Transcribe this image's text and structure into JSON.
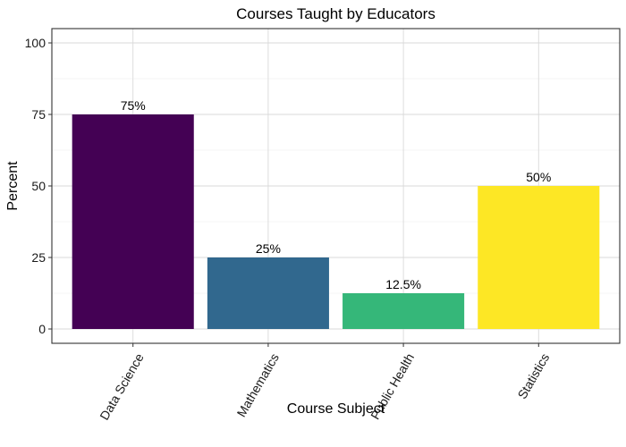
{
  "chart_data": {
    "type": "bar",
    "title": "Courses Taught by Educators",
    "xlabel": "Course Subject",
    "ylabel": "Percent",
    "categories": [
      "Data Science",
      "Mathematics",
      "Public Health",
      "Statistics"
    ],
    "values": [
      75,
      25,
      12.5,
      50
    ],
    "value_labels": [
      "75%",
      "25%",
      "12.5%",
      "50%"
    ],
    "colors": [
      "#440154",
      "#31688E",
      "#35B779",
      "#FDE725"
    ],
    "ylim": [
      0,
      100
    ],
    "yticks": [
      0,
      25,
      50,
      75,
      100
    ],
    "grid": true,
    "legend": "none"
  }
}
